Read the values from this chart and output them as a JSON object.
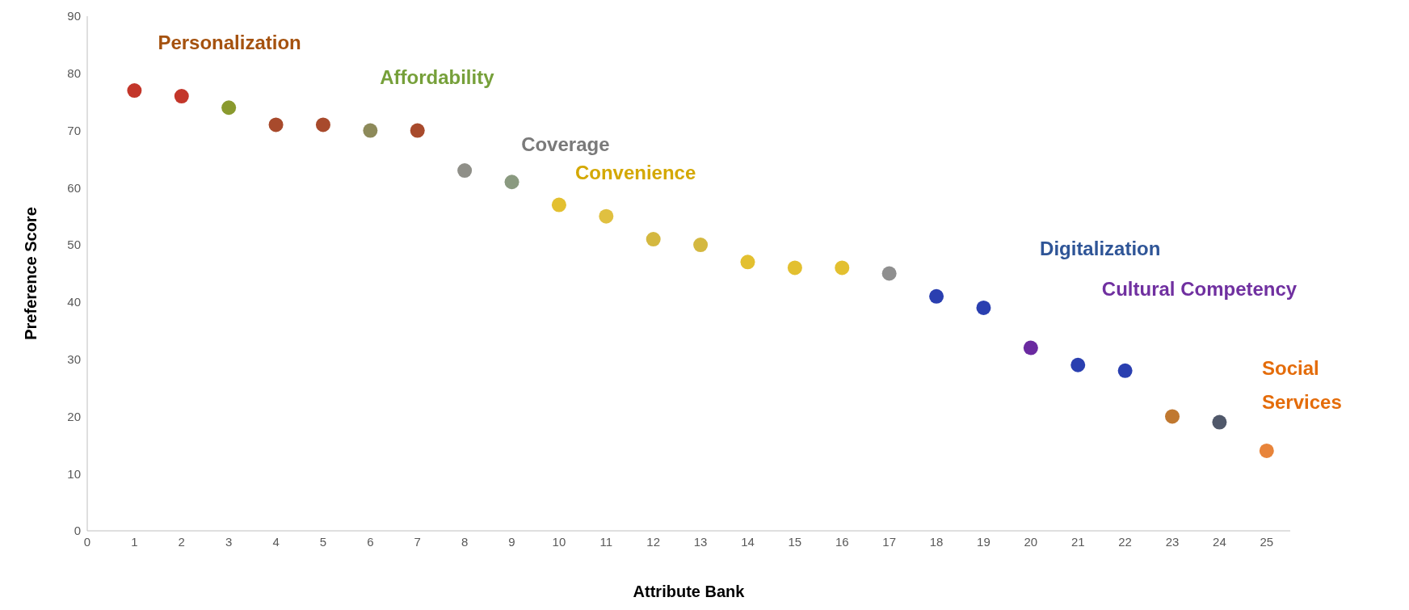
{
  "chart_data": {
    "type": "scatter",
    "xlabel": "Attribute Bank",
    "ylabel": "Preference Score",
    "xlim": [
      0,
      25.5
    ],
    "xticks": [
      0,
      1,
      2,
      3,
      4,
      5,
      6,
      7,
      8,
      9,
      10,
      11,
      12,
      13,
      14,
      15,
      16,
      17,
      18,
      19,
      20,
      21,
      22,
      23,
      24,
      25
    ],
    "ylim": [
      0,
      90
    ],
    "yticks": [
      0,
      10,
      20,
      30,
      40,
      50,
      60,
      70,
      80,
      90
    ],
    "grid": false,
    "legend": false,
    "marker": "circle",
    "series": [
      {
        "name": "Personalization",
        "color": "#a5520f",
        "x": [
          1,
          2,
          4,
          5,
          7
        ],
        "values": [
          77,
          76,
          71,
          71,
          70
        ],
        "colors": [
          "#c3362a",
          "#c3362a",
          "#a84a2c",
          "#a84a2c",
          "#a84a2c"
        ]
      },
      {
        "name": "Affordability",
        "color": "#76a03a",
        "x": [
          3,
          6
        ],
        "values": [
          74,
          70
        ],
        "colors": [
          "#8a9a2e",
          "#8d8a5a"
        ]
      },
      {
        "name": "Coverage",
        "color": "#7a7a7a",
        "x": [
          8,
          9,
          17
        ],
        "values": [
          63,
          61,
          45
        ],
        "colors": [
          "#8f8f88",
          "#8a9a80",
          "#8f8f8f"
        ]
      },
      {
        "name": "Convenience",
        "color": "#d4a800",
        "x": [
          10,
          11,
          12,
          13,
          14,
          15,
          16
        ],
        "values": [
          57,
          55,
          51,
          50,
          47,
          46,
          46
        ],
        "colors": [
          "#e3c030",
          "#e0c040",
          "#d4b840",
          "#d4b840",
          "#e3c030",
          "#e3c030",
          "#e3c030"
        ]
      },
      {
        "name": "Digitalization",
        "color": "#2f5597",
        "x": [
          18,
          19,
          21,
          22,
          24
        ],
        "values": [
          41,
          39,
          29,
          28,
          19
        ],
        "colors": [
          "#2a3fb0",
          "#2a3fb0",
          "#2a3fb0",
          "#2a3fb0",
          "#50586a"
        ]
      },
      {
        "name": "Cultural Competency",
        "color": "#7030a0",
        "x": [
          20
        ],
        "values": [
          32
        ],
        "colors": [
          "#6a2aa0"
        ]
      },
      {
        "name": "Social Services",
        "color": "#e46c0a",
        "x": [
          23,
          25
        ],
        "values": [
          20,
          14
        ],
        "colors": [
          "#c07830",
          "#e8843a"
        ]
      }
    ]
  }
}
